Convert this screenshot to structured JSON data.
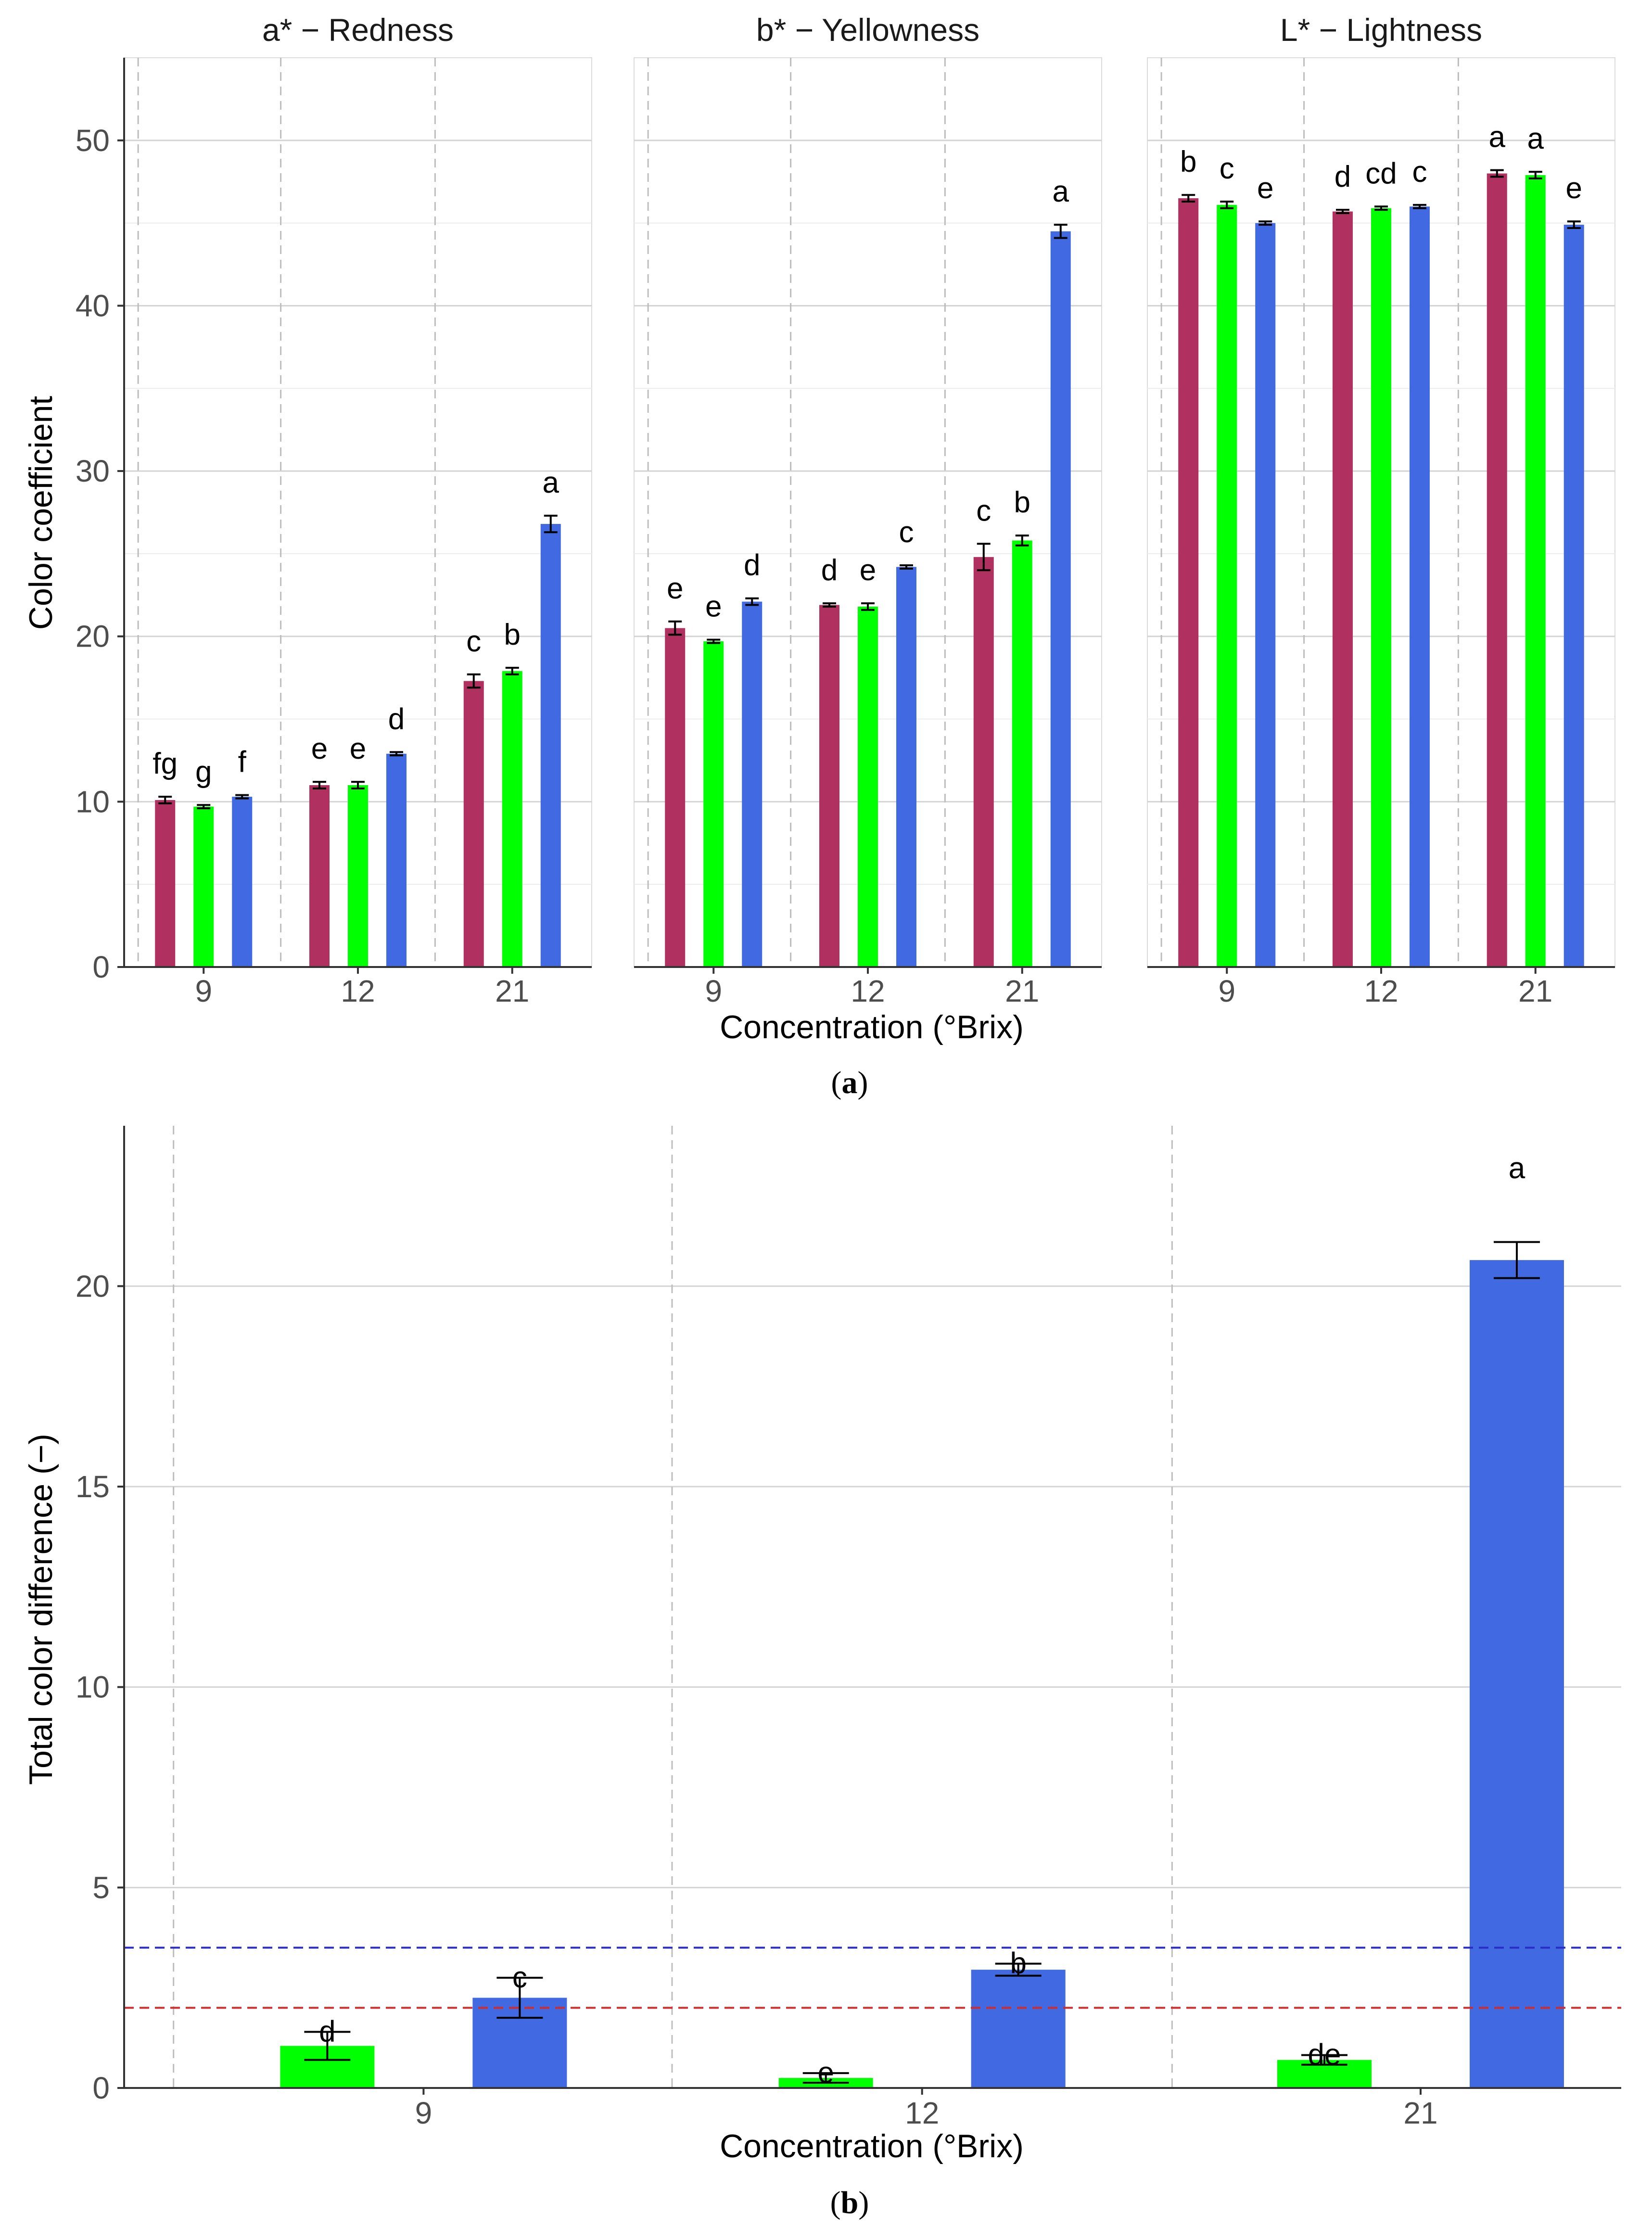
{
  "colors": {
    "series_1": "#B03060",
    "series_2": "#00FF00",
    "series_3": "#4169E1",
    "threshold_blue": "#2B2BC8",
    "threshold_red": "#D42A2A",
    "grid_major": "#d4d4d4",
    "grid_minor": "#ececec",
    "vline": "#bdbdbd"
  },
  "chart_data": [
    {
      "id": "a",
      "type": "bar",
      "caption_letter": "a",
      "xlabel": "Concentration (°Brix)",
      "ylabel": "Color coefficient",
      "ylim": [
        0,
        55
      ],
      "yticks": [
        0,
        10,
        20,
        30,
        40,
        50
      ],
      "categories": [
        "9",
        "12",
        "21"
      ],
      "facets": [
        {
          "title": "a* − Redness",
          "series": [
            {
              "values": [
                10.1,
                11.0,
                17.3
              ],
              "errors": [
                0.2,
                0.2,
                0.4
              ],
              "labels": [
                "fg",
                "e",
                "c"
              ]
            },
            {
              "values": [
                9.7,
                11.0,
                17.9
              ],
              "errors": [
                0.1,
                0.2,
                0.2
              ],
              "labels": [
                "g",
                "e",
                "b"
              ]
            },
            {
              "values": [
                10.3,
                12.9,
                26.8
              ],
              "errors": [
                0.1,
                0.1,
                0.5
              ],
              "labels": [
                "f",
                "d",
                "a"
              ]
            }
          ]
        },
        {
          "title": "b* − Yellowness",
          "series": [
            {
              "values": [
                20.5,
                21.9,
                24.8
              ],
              "errors": [
                0.4,
                0.1,
                0.8
              ],
              "labels": [
                "e",
                "d",
                "c"
              ]
            },
            {
              "values": [
                19.7,
                21.8,
                25.8
              ],
              "errors": [
                0.1,
                0.2,
                0.3
              ],
              "labels": [
                "e",
                "e",
                "b"
              ]
            },
            {
              "values": [
                22.1,
                24.2,
                44.5
              ],
              "errors": [
                0.2,
                0.1,
                0.4
              ],
              "labels": [
                "d",
                "c",
                "a"
              ]
            }
          ]
        },
        {
          "title": "L* − Lightness",
          "series": [
            {
              "values": [
                46.5,
                45.7,
                48.0
              ],
              "errors": [
                0.2,
                0.1,
                0.2
              ],
              "labels": [
                "b",
                "d",
                "a"
              ]
            },
            {
              "values": [
                46.1,
                45.9,
                47.9
              ],
              "errors": [
                0.2,
                0.1,
                0.2
              ],
              "labels": [
                "c",
                "cd",
                "a"
              ]
            },
            {
              "values": [
                45.0,
                46.0,
                44.9
              ],
              "errors": [
                0.1,
                0.1,
                0.2
              ],
              "labels": [
                "e",
                "c",
                "e"
              ]
            }
          ]
        }
      ]
    },
    {
      "id": "b",
      "type": "bar",
      "caption_letter": "b",
      "xlabel": "Concentration (°Brix)",
      "ylabel": "Total color difference (−)",
      "ylim": [
        0,
        24
      ],
      "yticks": [
        0,
        5,
        10,
        15,
        20
      ],
      "categories": [
        "9",
        "12",
        "21"
      ],
      "series": [
        {
          "values": [
            1.05,
            0.25,
            0.7
          ],
          "errors": [
            0.35,
            0.12,
            0.12
          ],
          "labels": [
            "d",
            "e",
            "de"
          ]
        },
        {
          "values": [
            2.25,
            2.95,
            20.65
          ],
          "errors": [
            0.5,
            0.15,
            0.45
          ],
          "labels": [
            "c",
            "b",
            "a"
          ]
        }
      ],
      "reference_lines": [
        {
          "value": 3.5,
          "color": "#2B2BC8"
        },
        {
          "value": 2.0,
          "color": "#D42A2A"
        }
      ]
    }
  ]
}
